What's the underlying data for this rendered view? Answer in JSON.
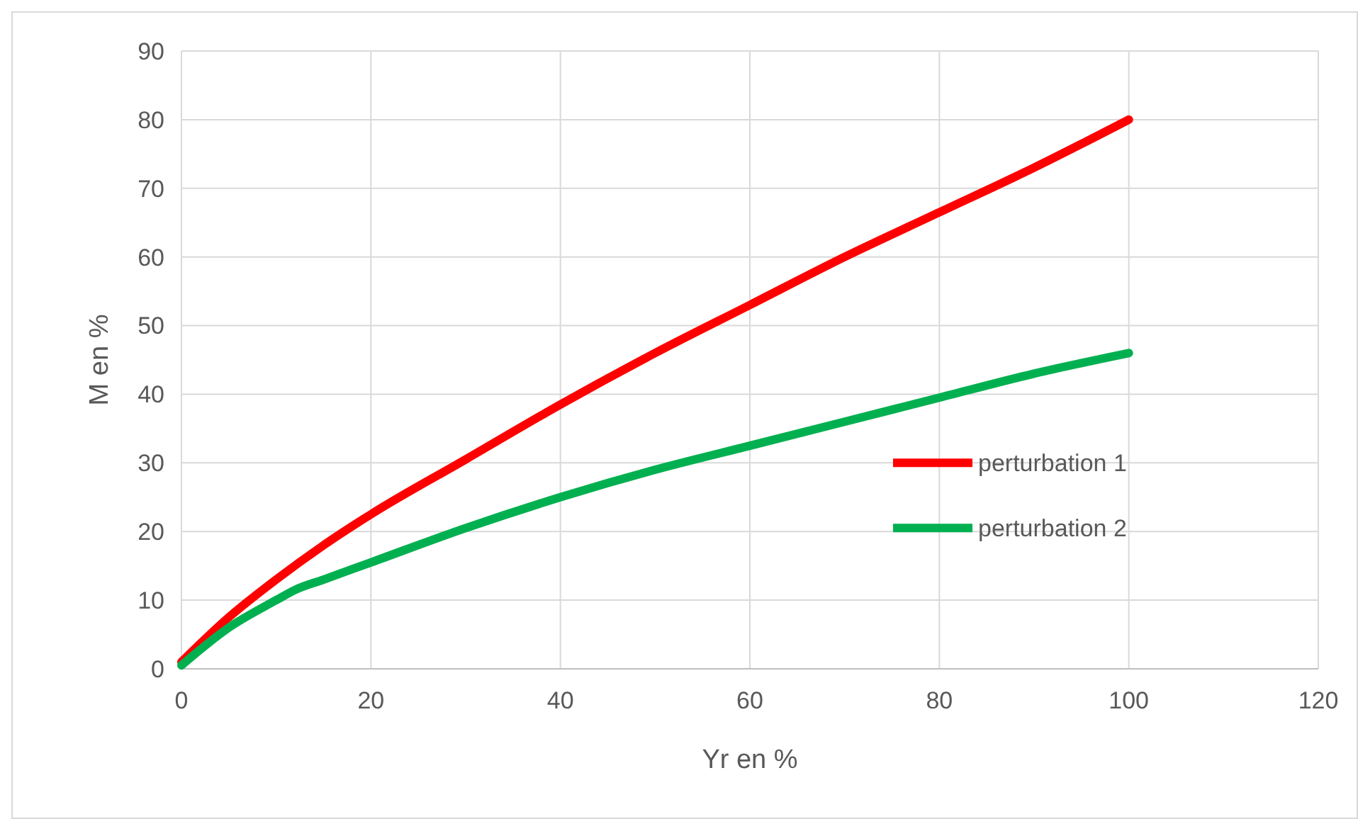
{
  "chart_data": {
    "type": "line",
    "xlabel": "Yr en %",
    "ylabel": "M en %",
    "xlim": [
      0,
      120
    ],
    "xticks": [
      0,
      20,
      40,
      60,
      80,
      100,
      120
    ],
    "ylim": [
      0,
      90
    ],
    "yticks": [
      0,
      10,
      20,
      30,
      40,
      50,
      60,
      70,
      80,
      90
    ],
    "grid": true,
    "legend": "right",
    "marker": "none",
    "line_style": "solid",
    "series": [
      {
        "name": "perturbation 1",
        "color": "#ff0000",
        "x": [
          0,
          5,
          10,
          15,
          20,
          30,
          40,
          50,
          60,
          70,
          80,
          90,
          100
        ],
        "values": [
          1,
          7.5,
          13,
          18,
          22.5,
          30.5,
          38.5,
          46,
          53,
          60,
          66.5,
          73,
          80
        ]
      },
      {
        "name": "perturbation 2",
        "color": "#00b050",
        "x": [
          0,
          5,
          10,
          12,
          15,
          20,
          30,
          40,
          50,
          60,
          70,
          80,
          90,
          100
        ],
        "values": [
          0.5,
          6,
          10,
          11.5,
          13,
          15.5,
          20.5,
          25,
          29,
          32.5,
          36,
          39.5,
          43,
          46
        ]
      }
    ]
  }
}
